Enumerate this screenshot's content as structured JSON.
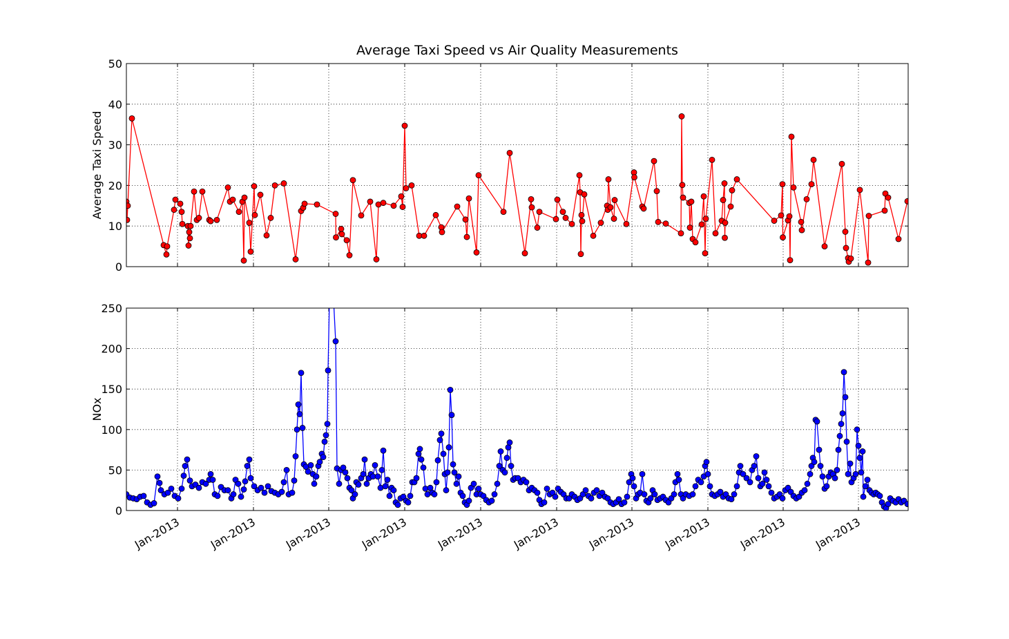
{
  "chart_data": [
    {
      "type": "line",
      "title": "Average Taxi Speed vs Air Quality Measurements",
      "ylabel": "Average Taxi Speed",
      "x": [
        0,
        1,
        2,
        8,
        54,
        58,
        59,
        69,
        71,
        78,
        80,
        81,
        89,
        90,
        91,
        92,
        93,
        98,
        102,
        105,
        110,
        120,
        122,
        131,
        147,
        150,
        154,
        163,
        168,
        170,
        171,
        178,
        180,
        185,
        186,
        194,
        203,
        209,
        215,
        228,
        245,
        253,
        256,
        258,
        276,
        303,
        303.5,
        311,
        312,
        319,
        323,
        328,
        340,
        353,
        362,
        365,
        372,
        387,
        398,
        400,
        403,
        405,
        413,
        424,
        431,
        448,
        456,
        457,
        479,
        491,
        493,
        496,
        507,
        510,
        546,
        555,
        577,
        586,
        587,
        595,
        598,
        622,
        624,
        632,
        636,
        645,
        656,
        657,
        658,
        659,
        660,
        663,
        676,
        687,
        696,
        697,
        698,
        701,
        706,
        707,
        724,
        735,
        735.5,
        747,
        749,
        764,
        768,
        770,
        781,
        803,
        804,
        805,
        806,
        815,
        816,
        818,
        820,
        824,
        833,
        836,
        838,
        839,
        848,
        853,
        862,
        864,
        866,
        866.5,
        867,
        875,
        877,
        884,
        938,
        948,
        950,
        950.5,
        958,
        960,
        961,
        963,
        966,
        977,
        978,
        985,
        992,
        995,
        1011,
        1036,
        1041,
        1042,
        1045,
        1046,
        1049,
        1062,
        1074,
        1075,
        1098,
        1099,
        1103,
        1118,
        1131
      ],
      "series": [
        {
          "color": "#ff0000",
          "values": [
            16,
            11.5,
            15,
            36.5,
            5.3,
            3,
            5,
            14,
            16.5,
            15.5,
            13.5,
            10.5,
            10,
            5.2,
            8.5,
            7,
            10,
            18.5,
            11.5,
            12,
            18.5,
            11.5,
            11.2,
            11.5,
            19.5,
            16,
            16.5,
            13.5,
            16,
            1.5,
            17,
            10.8,
            3.7,
            19.8,
            12.7,
            17.7,
            7.7,
            12,
            20,
            20.5,
            1.8,
            13.7,
            14.5,
            15.5,
            15.3,
            13,
            7.2,
            9.3,
            8,
            6.5,
            2.8,
            21.3,
            12.6,
            16,
            1.8,
            15.3,
            15.7,
            15,
            17.3,
            14.7,
            34.7,
            19.3,
            20,
            7.6,
            7.6,
            12.7,
            9.7,
            8.5,
            14.8,
            11.6,
            7.3,
            16.8,
            3.5,
            22.5,
            13.5,
            28,
            3.3,
            16.6,
            14.6,
            9.6,
            13.5,
            11.7,
            16.5,
            13.5,
            12,
            10.5,
            22.5,
            18.3,
            3.1,
            12.7,
            11.2,
            17.8,
            7.6,
            10.8,
            15,
            14,
            21.5,
            14.6,
            11.8,
            16.4,
            10.5,
            23.2,
            22,
            14.8,
            14.3,
            26,
            18.6,
            11,
            10.6,
            8.2,
            37,
            20.1,
            17,
            15.7,
            9.6,
            16,
            6.8,
            6,
            10.4,
            17.3,
            3.3,
            11.8,
            26.3,
            8.2,
            11.3,
            16.4,
            20.5,
            7.1,
            10.8,
            14.8,
            18.8,
            21.5,
            11.3,
            12.6,
            20.3,
            7.2,
            11.4,
            12.4,
            1.6,
            32,
            19.5,
            11,
            9,
            16.6,
            20.3,
            26.3,
            5,
            25.3,
            8.6,
            4.6,
            2.1,
            1.2,
            2,
            18.9,
            1,
            12.5,
            13.8,
            18,
            17,
            6.8,
            16.1
          ]
        }
      ],
      "xlim": [
        0,
        1132
      ],
      "xticks": [
        74,
        184,
        293,
        403,
        513,
        623,
        732,
        842,
        951,
        1060
      ],
      "ylim": [
        0,
        50
      ],
      "yticks": [
        0,
        10,
        20,
        30,
        40,
        50
      ],
      "grid": true
    },
    {
      "type": "line",
      "ylabel": "NOx",
      "x": [
        0,
        5,
        10,
        15,
        20,
        25,
        30,
        35,
        40,
        45,
        48,
        50,
        55,
        60,
        65,
        70,
        75,
        80,
        83,
        85,
        88,
        92,
        95,
        100,
        105,
        110,
        115,
        120,
        122,
        125,
        128,
        132,
        137,
        142,
        147,
        152,
        155,
        158,
        162,
        166,
        170,
        172,
        175,
        178,
        180,
        185,
        190,
        195,
        200,
        205,
        210,
        215,
        220,
        225,
        228,
        232,
        235,
        240,
        243,
        245,
        247,
        249,
        251,
        253,
        255,
        257,
        260,
        263,
        267,
        270,
        272,
        275,
        278,
        280,
        283,
        285,
        287,
        289,
        291,
        292,
        294,
        300,
        303,
        305,
        308,
        311,
        314,
        317,
        320,
        323,
        326,
        328,
        331,
        333,
        336,
        340,
        343,
        345,
        348,
        351,
        354,
        357,
        360,
        364,
        368,
        370,
        372,
        375,
        378,
        381,
        384,
        387,
        390,
        393,
        397,
        401,
        405,
        408,
        411,
        414,
        417,
        420,
        423,
        425,
        427,
        430,
        433,
        436,
        440,
        443,
        446,
        449,
        451,
        454,
        456,
        459,
        461,
        463,
        465,
        467,
        469,
        471,
        473,
        475,
        478,
        481,
        484,
        487,
        490,
        493,
        496,
        499,
        503,
        507,
        510,
        513,
        517,
        521,
        525,
        529,
        533,
        537,
        540,
        542,
        545,
        548,
        551,
        553,
        555,
        557,
        560,
        563,
        567,
        571,
        575,
        579,
        583,
        587,
        591,
        595,
        598,
        601,
        605,
        609,
        613,
        617,
        621,
        625,
        629,
        633,
        637,
        641,
        645,
        649,
        653,
        657,
        661,
        665,
        669,
        673,
        677,
        681,
        685,
        689,
        693,
        697,
        701,
        705,
        709,
        713,
        717,
        721,
        725,
        728,
        731,
        733,
        735,
        738,
        741,
        744,
        747,
        750,
        753,
        756,
        759,
        762,
        765,
        769,
        773,
        777,
        781,
        785,
        789,
        793,
        795,
        798,
        800,
        803,
        806,
        810,
        815,
        820,
        824,
        828,
        832,
        836,
        838,
        840,
        842,
        845,
        848,
        852,
        856,
        860,
        864,
        868,
        872,
        876,
        880,
        884,
        887,
        889,
        893,
        898,
        903,
        906,
        909,
        912,
        915,
        918,
        921,
        924,
        927,
        930,
        934,
        938,
        942,
        946,
        950,
        954,
        958,
        962,
        966,
        970,
        974,
        978,
        982,
        986,
        990,
        992,
        994,
        996,
        998,
        1000,
        1003,
        1005,
        1008,
        1011,
        1014,
        1017,
        1020,
        1023,
        1026,
        1029,
        1031,
        1033,
        1035,
        1037,
        1039,
        1041,
        1043,
        1045,
        1048,
        1050,
        1053,
        1056,
        1058,
        1060,
        1062,
        1064,
        1066,
        1067,
        1070,
        1073,
        1076,
        1079,
        1082,
        1085,
        1088,
        1091,
        1094,
        1097,
        1100,
        1103,
        1106,
        1110,
        1114,
        1118,
        1122,
        1126,
        1131
      ],
      "series": [
        {
          "color": "#0000ff",
          "values": [
            20,
            16,
            15,
            14,
            17,
            18,
            10,
            7,
            9,
            42,
            34,
            25,
            20,
            22,
            27,
            18,
            15,
            27,
            43,
            55,
            63,
            37,
            30,
            32,
            28,
            35,
            33,
            38,
            45,
            38,
            20,
            18,
            29,
            25,
            25,
            15,
            20,
            38,
            33,
            17,
            26,
            36,
            55,
            63,
            40,
            30,
            25,
            28,
            22,
            30,
            24,
            22,
            20,
            23,
            35,
            50,
            20,
            22,
            37,
            67,
            100,
            131,
            119,
            170,
            102,
            57,
            54,
            48,
            56,
            45,
            33,
            42,
            55,
            60,
            70,
            66,
            85,
            93,
            107,
            173,
            260,
            260,
            209,
            52,
            33,
            50,
            53,
            47,
            40,
            28,
            25,
            15,
            20,
            35,
            32,
            40,
            45,
            63,
            33,
            40,
            45,
            42,
            56,
            42,
            28,
            50,
            74,
            30,
            38,
            18,
            28,
            25,
            10,
            7,
            15,
            17,
            12,
            10,
            18,
            35,
            35,
            40,
            70,
            76,
            63,
            53,
            27,
            20,
            28,
            22,
            20,
            35,
            62,
            87,
            95,
            70,
            45,
            25,
            47,
            78,
            149,
            118,
            57,
            47,
            33,
            42,
            22,
            18,
            10,
            7,
            12,
            28,
            33,
            20,
            27,
            20,
            18,
            13,
            10,
            12,
            20,
            33,
            55,
            73,
            50,
            47,
            65,
            78,
            84,
            55,
            38,
            40,
            40,
            35,
            38,
            35,
            25,
            28,
            25,
            22,
            13,
            8,
            10,
            27,
            20,
            22,
            17,
            27,
            23,
            20,
            15,
            15,
            20,
            17,
            13,
            15,
            20,
            25,
            18,
            15,
            22,
            25,
            18,
            22,
            17,
            15,
            10,
            8,
            10,
            14,
            8,
            10,
            17,
            35,
            45,
            40,
            30,
            15,
            20,
            22,
            45,
            20,
            12,
            10,
            15,
            25,
            20,
            13,
            15,
            17,
            13,
            10,
            15,
            20,
            35,
            45,
            38,
            20,
            15,
            20,
            18,
            20,
            30,
            38,
            35,
            42,
            55,
            60,
            45,
            30,
            20,
            18,
            20,
            23,
            17,
            20,
            15,
            14,
            20,
            30,
            47,
            55,
            45,
            40,
            35,
            50,
            55,
            67,
            40,
            30,
            33,
            47,
            38,
            30,
            22,
            15,
            17,
            20,
            15,
            25,
            28,
            23,
            18,
            15,
            17,
            22,
            25,
            33,
            45,
            55,
            65,
            60,
            112,
            110,
            75,
            55,
            42,
            27,
            30,
            42,
            47,
            45,
            40,
            50,
            75,
            92,
            107,
            120,
            171,
            140,
            85,
            45,
            58,
            35,
            40,
            45,
            100,
            80,
            65,
            47,
            73,
            17,
            30,
            38,
            25,
            22,
            20,
            22,
            20,
            18,
            10,
            5,
            3,
            8,
            15,
            12,
            10,
            14,
            10,
            12,
            8
          ]
        }
      ],
      "xlim": [
        0,
        1132
      ],
      "xticks": [
        {
          "value": 74,
          "label": "Jan-2013"
        },
        {
          "value": 184,
          "label": "Jan-2013"
        },
        {
          "value": 293,
          "label": "Jan-2013"
        },
        {
          "value": 403,
          "label": "Jan-2013"
        },
        {
          "value": 513,
          "label": "Jan-2013"
        },
        {
          "value": 623,
          "label": "Jan-2013"
        },
        {
          "value": 732,
          "label": "Jan-2013"
        },
        {
          "value": 842,
          "label": "Jan-2013"
        },
        {
          "value": 951,
          "label": "Jan-2013"
        },
        {
          "value": 1060,
          "label": "Jan-2013"
        }
      ],
      "ylim": [
        0,
        250
      ],
      "yticks": [
        0,
        50,
        100,
        150,
        200,
        250
      ],
      "grid": true
    }
  ]
}
